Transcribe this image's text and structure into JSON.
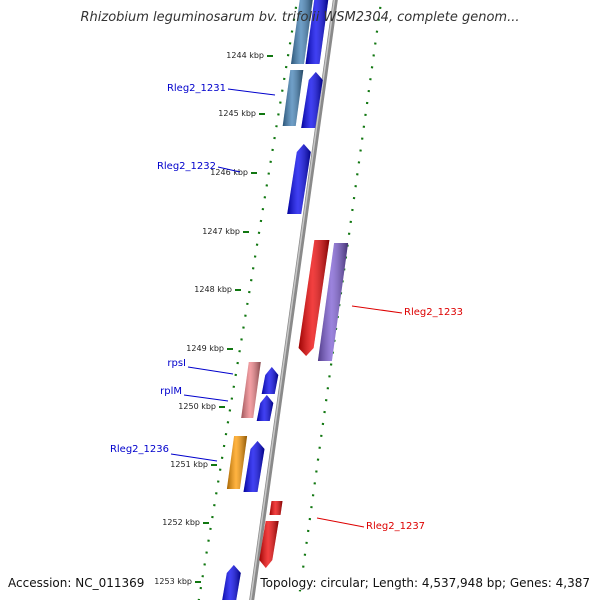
{
  "map": {
    "title": "Rhizobium leguminosarum bv. trifolii WSM2304, complete genom...",
    "accession": "Accession: NC_011369",
    "topology": "Topology: circular; Length: 4,537,948 bp; Genes: 4,387"
  },
  "ticks": [
    "1244 kbp",
    "1245 kbp",
    "1246 kbp",
    "1247 kbp",
    "1248 kbp",
    "1249 kbp",
    "1250 kbp",
    "1251 kbp",
    "1252 kbp",
    "1253 kbp"
  ],
  "gene_labels": [
    {
      "text": "Rleg2_1231",
      "color": "#0000cc"
    },
    {
      "text": "Rleg2_1232",
      "color": "#0000cc"
    },
    {
      "text": "Rleg2_1233",
      "color": "#dd0000"
    },
    {
      "text": "rpsI",
      "color": "#0000cc"
    },
    {
      "text": "rplM",
      "color": "#0000cc"
    },
    {
      "text": "Rleg2_1236",
      "color": "#0000cc"
    },
    {
      "text": "Rleg2_1237",
      "color": "#dd0000"
    }
  ],
  "colors": {
    "forward_gene": "#0000ee",
    "reverse_gene": "#ee0000",
    "feature_blue": "#3f7fb5",
    "feature_purple": "#7a5ad2",
    "feature_pink": "#ef7f85",
    "feature_orange": "#ff9a00",
    "dotted_ring": "#117711",
    "backbone": "#8a8a8a"
  }
}
